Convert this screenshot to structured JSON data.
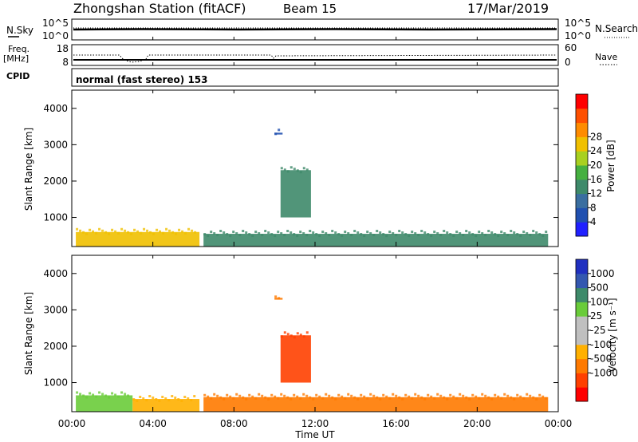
{
  "header": {
    "station": "Zhongshan Station (fitACF)",
    "beam": "Beam 15",
    "date": "17/Mar/2019"
  },
  "top_panels": {
    "nsky_label": "N.Sky",
    "nsky_ticks": [
      "10^5",
      "10^0"
    ],
    "nsearch_label": "N.Search",
    "nsearch_ticks": [
      "10^5",
      "10^0"
    ],
    "freq_label": "Freq.",
    "freq_unit": "[MHz]",
    "freq_ticks": [
      "18",
      "8"
    ],
    "nave_label": "Nave",
    "nave_ticks": [
      "60",
      "0"
    ],
    "cpid_label": "CPID",
    "cpid_text": "normal (fast stereo) 153"
  },
  "colors": {
    "power_scale": [
      "#2020ff",
      "#2050b0",
      "#3a6ea0",
      "#3e8a6a",
      "#45b040",
      "#a8d020",
      "#f0c000",
      "#ff8c00",
      "#ff5000",
      "#ff0000"
    ],
    "velocity_scale": [
      "#ff0000",
      "#ff4000",
      "#ff7a00",
      "#ffb000",
      "#bfbfbf",
      "#c0c0c0",
      "#6acc3a",
      "#3e8a6a",
      "#3458b0",
      "#2030c0"
    ]
  },
  "chart_data": [
    {
      "type": "heatmap",
      "name_key": "power",
      "ylabel": "Slant Range [km]",
      "yticks": [
        "1000",
        "2000",
        "3000",
        "4000"
      ],
      "ylim": [
        200,
        4500
      ],
      "xlim": [
        0,
        24
      ],
      "colorbar_label": "Power [dB]",
      "colorbar_ticks": [
        "4",
        "8",
        "12",
        "16",
        "20",
        "24",
        "28"
      ],
      "colorbar_range": [
        0,
        32
      ],
      "features": [
        {
          "t0": 0.2,
          "t1": 6.3,
          "r0": 200,
          "r1": 600,
          "value": 22
        },
        {
          "t0": 6.5,
          "t1": 23.5,
          "r0": 200,
          "r1": 550,
          "value": 12
        },
        {
          "t0": 10.3,
          "t1": 11.8,
          "r0": 1000,
          "r1": 2300,
          "value": 10
        },
        {
          "t0": 10.0,
          "t1": 10.4,
          "r0": 3280,
          "r1": 3330,
          "value": 6
        }
      ]
    },
    {
      "type": "heatmap",
      "name_key": "velocity",
      "ylabel": "Slant Range [km]",
      "yticks": [
        "1000",
        "2000",
        "3000",
        "4000"
      ],
      "ylim": [
        200,
        4500
      ],
      "xlim": [
        0,
        24
      ],
      "xticks": [
        "00:00",
        "04:00",
        "08:00",
        "12:00",
        "16:00",
        "20:00",
        "00:00"
      ],
      "xlabel": "Time UT",
      "colorbar_label": "Velocity [m s⁻¹]",
      "colorbar_ticks": [
        "1000",
        "500",
        "100",
        "25",
        "-25",
        "-100",
        "-500",
        "-1000"
      ],
      "features": [
        {
          "t0": 0.2,
          "t1": 3.0,
          "r0": 200,
          "r1": 650,
          "value": 100
        },
        {
          "t0": 3.0,
          "t1": 6.3,
          "r0": 200,
          "r1": 550,
          "value": -25
        },
        {
          "t0": 6.5,
          "t1": 23.5,
          "r0": 200,
          "r1": 600,
          "value": -100
        },
        {
          "t0": 10.3,
          "t1": 11.8,
          "r0": 1000,
          "r1": 2300,
          "value": -500
        },
        {
          "t0": 10.0,
          "t1": 10.4,
          "r0": 3280,
          "r1": 3330,
          "value": -100
        }
      ]
    }
  ]
}
